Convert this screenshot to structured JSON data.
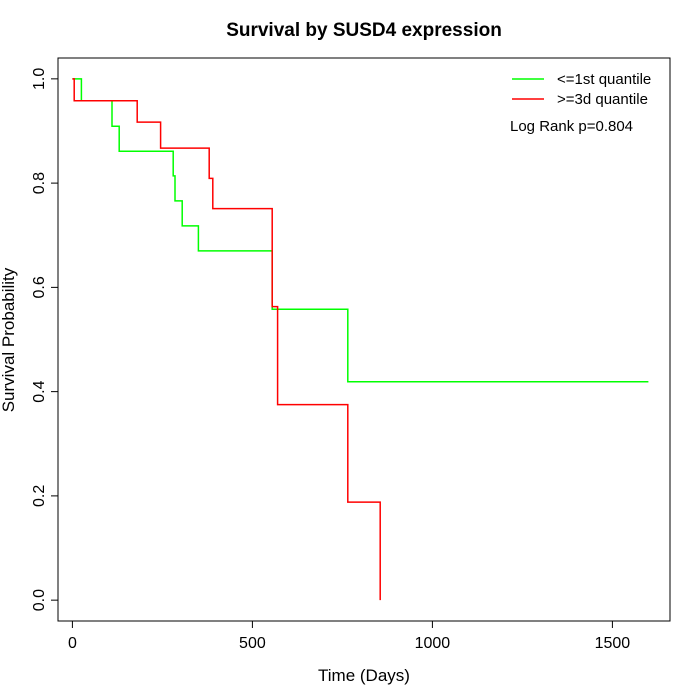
{
  "chart_data": {
    "type": "line",
    "title": "Survival by SUSD4 expression",
    "xlabel": "Time (Days)",
    "ylabel": "Survival Probability",
    "xlim": [
      -40,
      1660
    ],
    "ylim": [
      -0.04,
      1.04
    ],
    "xticks": [
      0,
      500,
      1000,
      1500
    ],
    "yticks": [
      0.0,
      0.2,
      0.4,
      0.6,
      0.8,
      1.0
    ],
    "xtick_labels": [
      "0",
      "500",
      "1000",
      "1500"
    ],
    "ytick_labels": [
      "0.0",
      "0.2",
      "0.4",
      "0.6",
      "0.8",
      "1.0"
    ],
    "grid": false,
    "legend_position": "top-right",
    "annotation": "Log Rank p=0.804",
    "series": [
      {
        "name": "<=1st quantile",
        "color": "#00ff00",
        "step": true,
        "x": [
          0,
          25,
          110,
          130,
          280,
          285,
          305,
          350,
          555,
          765,
          1600
        ],
        "y": [
          1.0,
          0.958,
          0.909,
          0.861,
          0.814,
          0.766,
          0.718,
          0.67,
          0.558,
          0.419,
          0.419
        ]
      },
      {
        "name": ">=3d quantile",
        "color": "#ff0000",
        "step": true,
        "x": [
          0,
          5,
          180,
          245,
          380,
          390,
          555,
          560,
          570,
          765,
          855,
          855
        ],
        "y": [
          1.0,
          0.958,
          0.917,
          0.867,
          0.809,
          0.751,
          0.563,
          0.563,
          0.375,
          0.188,
          0.188,
          0.0
        ]
      }
    ]
  }
}
